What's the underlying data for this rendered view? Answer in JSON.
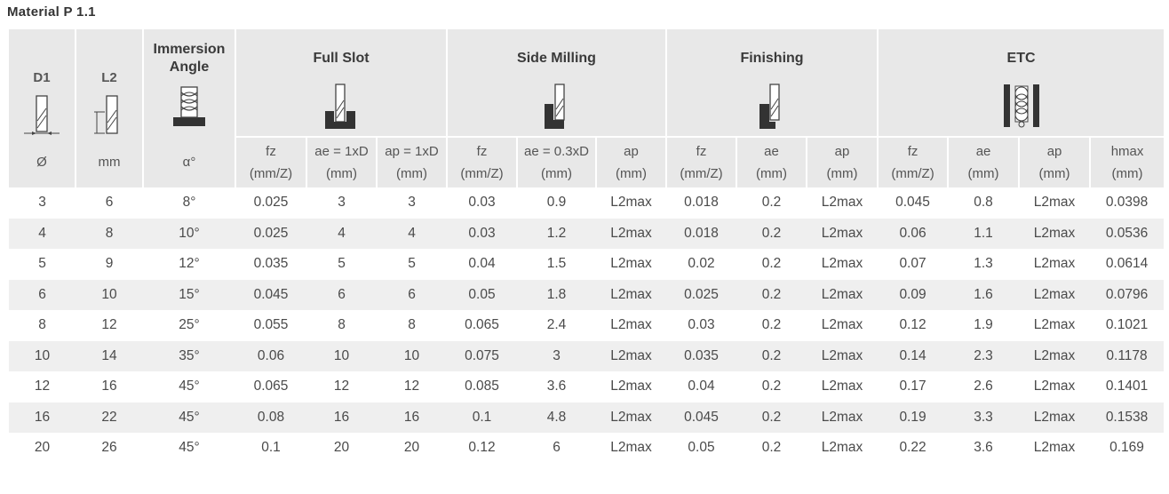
{
  "title": "Material P 1.1",
  "groups": {
    "d1": "D1",
    "l2": "L2",
    "immersion": [
      "Immersion",
      "Angle"
    ],
    "full_slot": "Full Slot",
    "side_milling": "Side Milling",
    "finishing": "Finishing",
    "etc": "ETC"
  },
  "icons": {
    "d1": "end-mill-diameter-icon",
    "l2": "end-mill-length-icon",
    "immersion": "helix-immersion-icon",
    "full_slot": "full-slot-icon",
    "side_milling": "side-milling-icon",
    "finishing": "finishing-icon",
    "etc": "trochoidal-icon"
  },
  "units": [
    [
      "Ø"
    ],
    [
      "mm"
    ],
    [
      "α°"
    ],
    [
      "fz",
      "(mm/Z)"
    ],
    [
      "ae = 1xD",
      "(mm)"
    ],
    [
      "ap = 1xD",
      "(mm)"
    ],
    [
      "fz",
      "(mm/Z)"
    ],
    [
      "ae = 0.3xD",
      "(mm)"
    ],
    [
      "ap",
      "(mm)"
    ],
    [
      "fz",
      "(mm/Z)"
    ],
    [
      "ae",
      "(mm)"
    ],
    [
      "ap",
      "(mm)"
    ],
    [
      "fz",
      "(mm/Z)"
    ],
    [
      "ae",
      "(mm)"
    ],
    [
      "ap",
      "(mm)"
    ],
    [
      "hmax",
      "(mm)"
    ]
  ],
  "rows": [
    [
      "3",
      "6",
      "8°",
      "0.025",
      "3",
      "3",
      "0.03",
      "0.9",
      "L2max",
      "0.018",
      "0.2",
      "L2max",
      "0.045",
      "0.8",
      "L2max",
      "0.0398"
    ],
    [
      "4",
      "8",
      "10°",
      "0.025",
      "4",
      "4",
      "0.03",
      "1.2",
      "L2max",
      "0.018",
      "0.2",
      "L2max",
      "0.06",
      "1.1",
      "L2max",
      "0.0536"
    ],
    [
      "5",
      "9",
      "12°",
      "0.035",
      "5",
      "5",
      "0.04",
      "1.5",
      "L2max",
      "0.02",
      "0.2",
      "L2max",
      "0.07",
      "1.3",
      "L2max",
      "0.0614"
    ],
    [
      "6",
      "10",
      "15°",
      "0.045",
      "6",
      "6",
      "0.05",
      "1.8",
      "L2max",
      "0.025",
      "0.2",
      "L2max",
      "0.09",
      "1.6",
      "L2max",
      "0.0796"
    ],
    [
      "8",
      "12",
      "25°",
      "0.055",
      "8",
      "8",
      "0.065",
      "2.4",
      "L2max",
      "0.03",
      "0.2",
      "L2max",
      "0.12",
      "1.9",
      "L2max",
      "0.1021"
    ],
    [
      "10",
      "14",
      "35°",
      "0.06",
      "10",
      "10",
      "0.075",
      "3",
      "L2max",
      "0.035",
      "0.2",
      "L2max",
      "0.14",
      "2.3",
      "L2max",
      "0.1178"
    ],
    [
      "12",
      "16",
      "45°",
      "0.065",
      "12",
      "12",
      "0.085",
      "3.6",
      "L2max",
      "0.04",
      "0.2",
      "L2max",
      "0.17",
      "2.6",
      "L2max",
      "0.1401"
    ],
    [
      "16",
      "22",
      "45°",
      "0.08",
      "16",
      "16",
      "0.1",
      "4.8",
      "L2max",
      "0.045",
      "0.2",
      "L2max",
      "0.19",
      "3.3",
      "L2max",
      "0.1538"
    ],
    [
      "20",
      "26",
      "45°",
      "0.1",
      "20",
      "20",
      "0.12",
      "6",
      "L2max",
      "0.05",
      "0.2",
      "L2max",
      "0.22",
      "3.6",
      "L2max",
      "0.169"
    ]
  ]
}
